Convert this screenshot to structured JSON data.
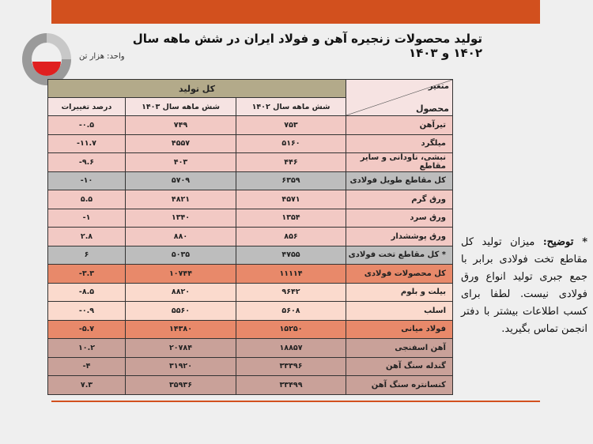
{
  "title": "تولید محصولات زنجیره آهن و فولاد ایران در شش ماهه سال ۱۴۰۲ و ۱۴۰۳",
  "unit": "واحد: هزار تن",
  "colors": {
    "brand": "#d2501e",
    "header": "#b3aa8a",
    "pink": "#f2c9c4",
    "gray": "#bdbdbd",
    "orange": "#e8896a",
    "peach": "#fbdacd",
    "brown": "#c9a199"
  },
  "table": {
    "corner_variable": "متغیر",
    "corner_product": "محصول",
    "group_header": "کل تولید",
    "columns": [
      "شش ماهه سال ۱۴۰۲",
      "شش ماهه سال ۱۴۰۳",
      "درصد تغییرات"
    ],
    "rows": [
      {
        "name": "تیرآهن",
        "y1402": "۷۵۳",
        "y1403": "۷۴۹",
        "change": "-۰.۵",
        "style": "pink"
      },
      {
        "name": "میلگرد",
        "y1402": "۵۱۶۰",
        "y1403": "۴۵۵۷",
        "change": "-۱۱.۷",
        "style": "pink"
      },
      {
        "name": "نبشی، ناودانی و سایر مقاطع",
        "y1402": "۴۴۶",
        "y1403": "۴۰۳",
        "change": "-۹.۶",
        "style": "pink"
      },
      {
        "name": "کل مقاطع طویل فولادی",
        "y1402": "۶۳۵۹",
        "y1403": "۵۷۰۹",
        "change": "-۱۰",
        "style": "gray"
      },
      {
        "name": "ورق گرم",
        "y1402": "۴۵۷۱",
        "y1403": "۴۸۲۱",
        "change": "۵.۵",
        "style": "pink"
      },
      {
        "name": "ورق سرد",
        "y1402": "۱۳۵۴",
        "y1403": "۱۳۴۰",
        "change": "-۱",
        "style": "pink"
      },
      {
        "name": "ورق پوششدار",
        "y1402": "۸۵۶",
        "y1403": "۸۸۰",
        "change": "۲.۸",
        "style": "pink"
      },
      {
        "name": "* کل مقاطع تخت فولادی",
        "y1402": "۴۷۵۵",
        "y1403": "۵۰۳۵",
        "change": "۶",
        "style": "gray"
      },
      {
        "name": "کل محصولات فولادی",
        "y1402": "۱۱۱۱۴",
        "y1403": "۱۰۷۴۴",
        "change": "-۳.۳",
        "style": "orange"
      },
      {
        "name": "بیلت و بلوم",
        "y1402": "۹۶۴۲",
        "y1403": "۸۸۲۰",
        "change": "-۸.۵",
        "style": "peach"
      },
      {
        "name": "اسلب",
        "y1402": "۵۶۰۸",
        "y1403": "۵۵۶۰",
        "change": "-۰.۹",
        "style": "peach"
      },
      {
        "name": "فولاد میانی",
        "y1402": "۱۵۲۵۰",
        "y1403": "۱۴۳۸۰",
        "change": "-۵.۷",
        "style": "orange"
      },
      {
        "name": "آهن اسفنجی",
        "y1402": "۱۸۸۵۷",
        "y1403": "۲۰۷۸۴",
        "change": "۱۰.۲",
        "style": "brown"
      },
      {
        "name": "گندله سنگ آهن",
        "y1402": "۳۳۳۹۶",
        "y1403": "۳۱۹۲۰",
        "change": "-۴",
        "style": "brown"
      },
      {
        "name": "کنسانتره سنگ آهن",
        "y1402": "۳۳۴۹۹",
        "y1403": "۳۵۹۳۶",
        "change": "۷.۳",
        "style": "brown"
      }
    ]
  },
  "note": {
    "label": "* توضیح:",
    "text": "میزان تولید کل مقاطع تخت فولادی برابر با جمع جبری تولید انواع ورق فولادی نیست. لطفا برای کسب اطلاعات بیشتر با دفتر انجمن تماس بگیرید."
  }
}
